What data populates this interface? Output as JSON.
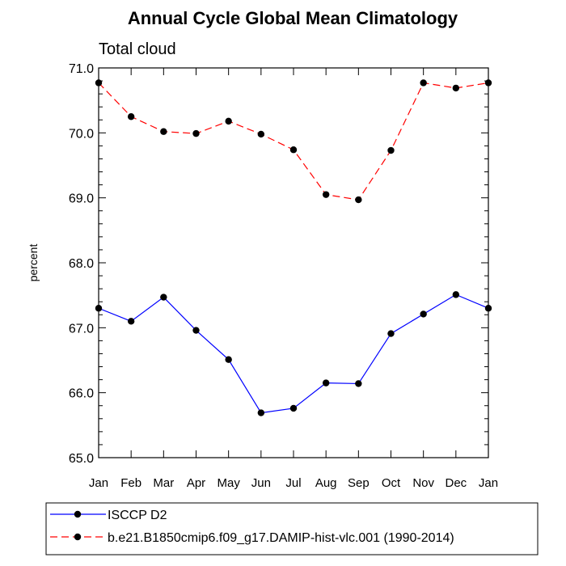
{
  "chart_data": {
    "type": "line",
    "title": "Annual Cycle Global Mean Climatology",
    "subtitle": "Total cloud",
    "xlabel": "",
    "ylabel": "percent",
    "categories": [
      "Jan",
      "Feb",
      "Mar",
      "Apr",
      "May",
      "Jun",
      "Jul",
      "Aug",
      "Sep",
      "Oct",
      "Nov",
      "Dec",
      "Jan"
    ],
    "ylim": [
      65.0,
      71.0
    ],
    "yticks": [
      "65.0",
      "66.0",
      "67.0",
      "68.0",
      "69.0",
      "70.0",
      "71.0"
    ],
    "grid": false,
    "legend_placement": "bottom",
    "series": [
      {
        "name": "ISCCP D2",
        "color": "#0000ff",
        "line_style": "solid",
        "marker": "circle",
        "values": [
          67.3,
          67.1,
          67.47,
          66.96,
          66.51,
          65.69,
          65.76,
          66.15,
          66.14,
          66.91,
          67.21,
          67.51,
          67.3
        ]
      },
      {
        "name": "b.e21.B1850cmip6.f09_g17.DAMIP-hist-vlc.001 (1990-2014)",
        "color": "#ff0000",
        "line_style": "dashed",
        "marker": "circle",
        "values": [
          70.77,
          70.25,
          70.02,
          69.99,
          70.18,
          69.98,
          69.74,
          69.05,
          68.97,
          69.73,
          70.77,
          70.69,
          70.77
        ]
      }
    ]
  }
}
